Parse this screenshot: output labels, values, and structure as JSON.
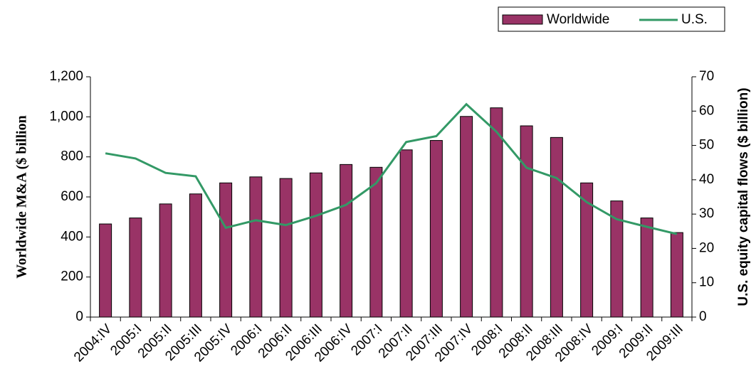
{
  "chart_data": {
    "type": "bar_line",
    "categories": [
      "2004:IV",
      "2005:I",
      "2005:II",
      "2005:III",
      "2005:IV",
      "2006:I",
      "2006:II",
      "2006:III",
      "2006:IV",
      "2007:I",
      "2007:II",
      "2007:III",
      "2007:IV",
      "2008:I",
      "2008:II",
      "2008:III",
      "2008:IV",
      "2009:I",
      "2009:II",
      "2009:III"
    ],
    "series": [
      {
        "name": "Worldwide",
        "type": "bar",
        "color": "#993366",
        "values": [
          465,
          495,
          565,
          615,
          670,
          700,
          692,
          720,
          762,
          748,
          835,
          882,
          1002,
          1045,
          955,
          897,
          670,
          580,
          495,
          422
        ]
      },
      {
        "name": "U.S.",
        "type": "line",
        "axis": "y2",
        "color": "#339966",
        "values": [
          47.7,
          46.2,
          42,
          41,
          26,
          28.2,
          26.8,
          29.5,
          32.7,
          39,
          51,
          52.7,
          62,
          54,
          43.5,
          40.5,
          33.5,
          28.5,
          26.3,
          24.2
        ]
      }
    ],
    "ylabel": "Worldwide M&A ($ billion",
    "y2label": "U.S. equity capital flows ($ billion)",
    "ylim": [
      0,
      1200
    ],
    "yticks": [
      0,
      200,
      400,
      600,
      800,
      {
        "value": 1000,
        "label": "1,000"
      },
      {
        "value": 1200,
        "label": "1,200"
      }
    ],
    "y2lim": [
      0,
      70
    ],
    "y2ticks": [
      0,
      10,
      20,
      30,
      40,
      50,
      60,
      70
    ],
    "legend": "top-right"
  }
}
